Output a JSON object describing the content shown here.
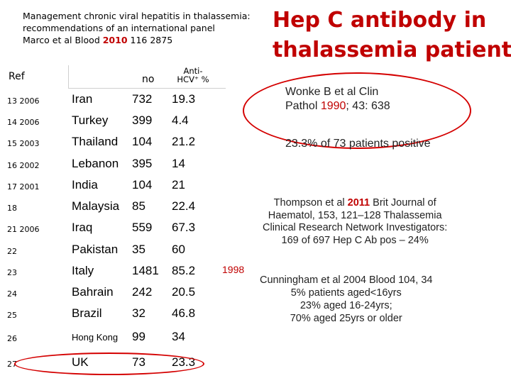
{
  "citation": {
    "line1": "Management chronic viral hepatitis in thalassemia:",
    "line2": "recommendations of an international panel",
    "line3_pre": "Marco et al Blood ",
    "line3_year": "2010",
    "line3_post": " 116 2875"
  },
  "title": {
    "line1": "Hep C antibody in",
    "line2": "thalassemia patients"
  },
  "table": {
    "headers": {
      "ref": "Ref",
      "no": "no",
      "anti_line1": "Anti-",
      "anti_line2": "HCV⁺ %"
    },
    "rows": [
      {
        "ref": "13 2006",
        "country": "Iran",
        "no": "732",
        "pct": "19.3"
      },
      {
        "ref": "14 2006",
        "country": "Turkey",
        "no": "399",
        "pct": "4.4"
      },
      {
        "ref": "15 2003",
        "country": "Thailand",
        "no": "104",
        "pct": "21.2"
      },
      {
        "ref": "16 2002",
        "country": "Lebanon",
        "no": "395",
        "pct": "14"
      },
      {
        "ref": "17 2001",
        "country": "India",
        "no": "104",
        "pct": "21"
      },
      {
        "ref": "18",
        "country": "Malaysia",
        "no": "85",
        "pct": "22.4"
      },
      {
        "ref": "21 2006",
        "country": "Iraq",
        "no": "559",
        "pct": "67.3"
      },
      {
        "ref": "22",
        "country": "Pakistan",
        "no": "35",
        "pct": "60"
      },
      {
        "ref": "23",
        "country": "Italy",
        "no": "1481",
        "pct": "85.2"
      },
      {
        "ref": "24",
        "country": "Bahrain",
        "no": "242",
        "pct": "20.5"
      },
      {
        "ref": "25",
        "country": "Brazil",
        "no": "32",
        "pct": "46.8"
      },
      {
        "ref": "26",
        "country": "Hong Kong",
        "no": "99",
        "pct": "34"
      },
      {
        "ref": "27",
        "country": "UK",
        "no": "73",
        "pct": "23.3"
      }
    ],
    "italy_year": "1998"
  },
  "wonke": {
    "line1": "Wonke B et al Clin",
    "line2_pre": "Pathol ",
    "line2_year": "1990",
    "line2_post": "; 43: 638",
    "patients": "23.3% of 73 patients positive"
  },
  "thompson": {
    "line1_pre": "Thompson et al ",
    "line1_year": "2011",
    "line1_post": " Brit Journal of",
    "line2": "Haematol, 153, 121–128 Thalassemia",
    "line3": "Clinical Research Network Investigators:",
    "line4": "169 of 697 Hep C Ab pos – 24%"
  },
  "cunningham": {
    "line1": "Cunningham et al 2004 Blood 104, 34",
    "line2": "5% patients aged<16yrs",
    "line3": "23% aged 16-24yrs;",
    "line4": "70% aged 25yrs or older"
  },
  "colors": {
    "accent": "#c00000",
    "ellipse": "#d40000"
  }
}
